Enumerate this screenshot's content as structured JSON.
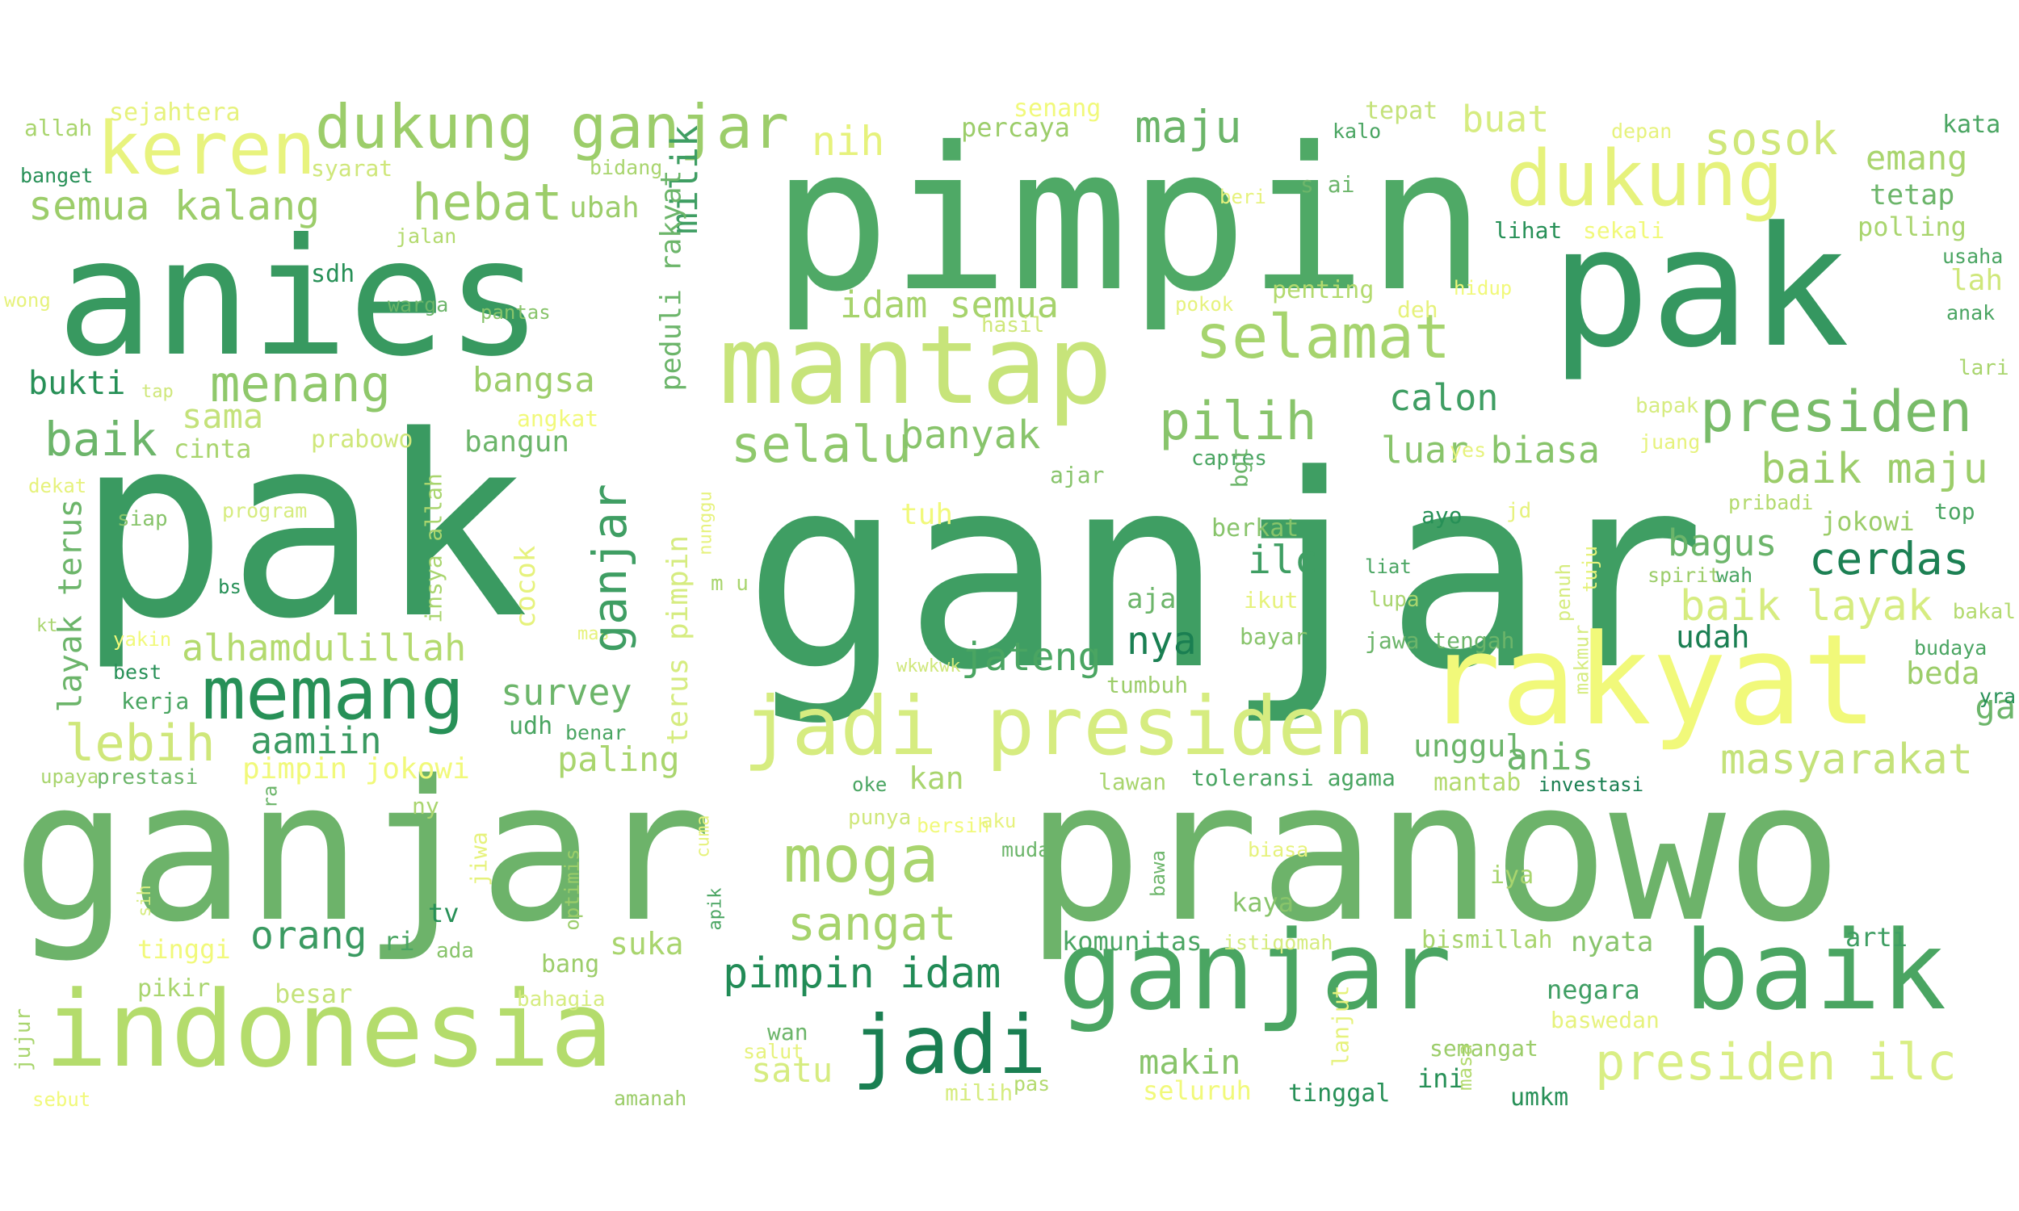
{
  "words": [
    {
      "text": "ganjar",
      "color": "#3f9e63"
    },
    {
      "text": "pak",
      "color": "#3a9a61"
    },
    {
      "text": "pimpin",
      "color": "#4fa966"
    },
    {
      "text": "pranowo",
      "color": "#6db36a"
    },
    {
      "text": "ganjar",
      "color": "#6db36a"
    },
    {
      "text": "anies",
      "color": "#389960"
    },
    {
      "text": "pak",
      "color": "#359760"
    },
    {
      "text": "indonesia",
      "color": "#b4dc6c"
    },
    {
      "text": "rakyat",
      "color": "#f1f97a"
    },
    {
      "text": "mantap",
      "color": "#c7e47a"
    },
    {
      "text": "ganjar",
      "color": "#4aa562"
    },
    {
      "text": "baik",
      "color": "#4aa562"
    },
    {
      "text": "jadi presiden",
      "color": "#d6ec80"
    },
    {
      "text": "dukung",
      "color": "#e6f27c"
    },
    {
      "text": "keren",
      "color": "#e8f37e"
    },
    {
      "text": "dukung ganjar",
      "color": "#9ccd6a"
    },
    {
      "text": "selamat",
      "color": "#a6d46e"
    },
    {
      "text": "memang",
      "color": "#279057"
    },
    {
      "text": "jadi",
      "color": "#1a7f52"
    },
    {
      "text": "presiden",
      "color": "#78bb68"
    },
    {
      "text": "moga",
      "color": "#a9d56e"
    },
    {
      "text": "presiden ilc",
      "color": "#d9ee84"
    },
    {
      "text": "pilih",
      "color": "#88c46b"
    },
    {
      "text": "selalu",
      "color": "#8fc86c"
    },
    {
      "text": "hebat",
      "color": "#9ccd6a"
    },
    {
      "text": "maju",
      "color": "#6cb56a"
    },
    {
      "text": "menang",
      "color": "#8fc86b"
    },
    {
      "text": "lebih",
      "color": "#cfe77a"
    },
    {
      "text": "sosok",
      "color": "#cfe77a"
    },
    {
      "text": "semua kalang",
      "color": "#9ccd6a"
    },
    {
      "text": "sangat",
      "color": "#a6d36c"
    },
    {
      "text": "cerdas",
      "color": "#1c8053"
    },
    {
      "text": "masyarakat",
      "color": "#c4e27a"
    },
    {
      "text": "baik maju",
      "color": "#9ccd6a"
    },
    {
      "text": "baik layak",
      "color": "#d6ec80"
    },
    {
      "text": "pimpin idam",
      "color": "#218b56"
    },
    {
      "text": "baik",
      "color": "#6cb56a"
    },
    {
      "text": "luar biasa",
      "color": "#88c46b"
    },
    {
      "text": "alhamdulillah",
      "color": "#b3da6e"
    },
    {
      "text": "idam semua",
      "color": "#a6d36c"
    },
    {
      "text": "banyak",
      "color": "#88c46b"
    },
    {
      "text": "calon",
      "color": "#3f9e63"
    },
    {
      "text": "bagus",
      "color": "#6cb56a"
    },
    {
      "text": "nih",
      "color": "#e6f27c"
    },
    {
      "text": "aamiin",
      "color": "#3a9a61"
    },
    {
      "text": "bangsa",
      "color": "#9ccd6a"
    },
    {
      "text": "survey",
      "color": "#6cb56a"
    },
    {
      "text": "orang",
      "color": "#3a9a61"
    },
    {
      "text": "makin",
      "color": "#88c46b"
    },
    {
      "text": "nya",
      "color": "#1a7f52"
    },
    {
      "text": "jateng",
      "color": "#4aa562"
    },
    {
      "text": "ilc",
      "color": "#3f9e63"
    },
    {
      "text": "anis",
      "color": "#6cb56a"
    },
    {
      "text": "paling",
      "color": "#a9d56e"
    },
    {
      "text": "emang",
      "color": "#a9d56e"
    },
    {
      "text": "satu",
      "color": "#d6ec80"
    },
    {
      "text": "sama",
      "color": "#c4e27a"
    },
    {
      "text": "buat",
      "color": "#d6ec80"
    },
    {
      "text": "bukti",
      "color": "#279057"
    },
    {
      "text": "suka",
      "color": "#a9d56e"
    },
    {
      "text": "kan",
      "color": "#a9d56e"
    },
    {
      "text": "unggul",
      "color": "#6cb56a"
    },
    {
      "text": "pimpin jokowi",
      "color": "#f1f97a"
    },
    {
      "text": "udah",
      "color": "#1a7f52"
    },
    {
      "text": "tetap",
      "color": "#6cb56a"
    },
    {
      "text": "ga",
      "color": "#6cb56a"
    },
    {
      "text": "beda",
      "color": "#9ccd6a"
    },
    {
      "text": "lah",
      "color": "#cfe77a"
    },
    {
      "text": "jokowi",
      "color": "#9ccd6a"
    },
    {
      "text": "bangun",
      "color": "#6cb56a"
    },
    {
      "text": "prabowo",
      "color": "#cfe77a"
    },
    {
      "text": "cinta",
      "color": "#a9d56e"
    },
    {
      "text": "kaya",
      "color": "#88c46b"
    },
    {
      "text": "komunitas",
      "color": "#4aa562"
    },
    {
      "text": "nyata",
      "color": "#88c46b"
    },
    {
      "text": "arti",
      "color": "#3f9e63"
    },
    {
      "text": "negara",
      "color": "#3f9e63"
    },
    {
      "text": "tv",
      "color": "#279057"
    },
    {
      "text": "aja",
      "color": "#6cb56a"
    },
    {
      "text": "polling",
      "color": "#a9d56e"
    },
    {
      "text": "percaya",
      "color": "#9ccd6a"
    },
    {
      "text": "tepat",
      "color": "#c4e27a"
    },
    {
      "text": "senang",
      "color": "#f1f97a"
    },
    {
      "text": "sejahtera",
      "color": "#e6f27c"
    },
    {
      "text": "allah",
      "color": "#a9d56e"
    },
    {
      "text": "banget",
      "color": "#279057"
    },
    {
      "text": "syarat",
      "color": "#cfe77a"
    },
    {
      "text": "bidang",
      "color": "#a9d56e"
    },
    {
      "text": "ubah",
      "color": "#9ccd6a"
    },
    {
      "text": "jalan",
      "color": "#b3da6e"
    },
    {
      "text": "sdh",
      "color": "#279057"
    },
    {
      "text": "warga",
      "color": "#6cb56a"
    },
    {
      "text": "pantas",
      "color": "#88c46b"
    },
    {
      "text": "wong",
      "color": "#e6f27c"
    },
    {
      "text": "tap",
      "color": "#cfe77a"
    },
    {
      "text": "angkat",
      "color": "#f1f97a"
    },
    {
      "text": "dekat",
      "color": "#e6f27c"
    },
    {
      "text": "siap",
      "color": "#88c46b"
    },
    {
      "text": "program",
      "color": "#d6ec80"
    },
    {
      "text": "bs",
      "color": "#279057"
    },
    {
      "text": "kt",
      "color": "#a9d56e"
    },
    {
      "text": "yakin",
      "color": "#f1f97a"
    },
    {
      "text": "mas",
      "color": "#e6f27c"
    },
    {
      "text": "best",
      "color": "#279057"
    },
    {
      "text": "kerja",
      "color": "#4aa562"
    },
    {
      "text": "udh",
      "color": "#4aa562"
    },
    {
      "text": "benar",
      "color": "#4aa562"
    },
    {
      "text": "upaya",
      "color": "#a9d56e"
    },
    {
      "text": "prestasi",
      "color": "#6cb56a"
    },
    {
      "text": "ny",
      "color": "#a9d56e"
    },
    {
      "text": "tinggi",
      "color": "#f1f97a"
    },
    {
      "text": "ri",
      "color": "#4aa562"
    },
    {
      "text": "ada",
      "color": "#88c46b"
    },
    {
      "text": "bang",
      "color": "#9ccd6a"
    },
    {
      "text": "pikir",
      "color": "#a9d56e"
    },
    {
      "text": "besar",
      "color": "#c4e27a"
    },
    {
      "text": "bahagia",
      "color": "#d6ec80"
    },
    {
      "text": "sebut",
      "color": "#f1f97a"
    },
    {
      "text": "amanah",
      "color": "#9ccd6a"
    },
    {
      "text": "wan",
      "color": "#6cb56a"
    },
    {
      "text": "salut",
      "color": "#e6f27c"
    },
    {
      "text": "milih",
      "color": "#d6ec80"
    },
    {
      "text": "pas",
      "color": "#b3da6e"
    },
    {
      "text": "seluruh",
      "color": "#f1f97a"
    },
    {
      "text": "tinggal",
      "color": "#279057"
    },
    {
      "text": "ini",
      "color": "#279057"
    },
    {
      "text": "umkm",
      "color": "#279057"
    },
    {
      "text": "semangat",
      "color": "#9ccd6a"
    },
    {
      "text": "baswedan",
      "color": "#e6f27c"
    },
    {
      "text": "bismillah",
      "color": "#a9d56e"
    },
    {
      "text": "istiqomah",
      "color": "#d6ec80"
    },
    {
      "text": "iya",
      "color": "#a9d56e"
    },
    {
      "text": "muda",
      "color": "#6cb56a"
    },
    {
      "text": "biasa",
      "color": "#e6f27c"
    },
    {
      "text": "oke",
      "color": "#4aa562"
    },
    {
      "text": "punya",
      "color": "#cfe77a"
    },
    {
      "text": "bersih",
      "color": "#f1f97a"
    },
    {
      "text": "aku",
      "color": "#e6f27c"
    },
    {
      "text": "lawan",
      "color": "#a9d56e"
    },
    {
      "text": "toleransi agama",
      "color": "#4aa562"
    },
    {
      "text": "mantab",
      "color": "#b3da6e"
    },
    {
      "text": "investasi",
      "color": "#1a7f52"
    },
    {
      "text": "tumbuh",
      "color": "#9ccd6a"
    },
    {
      "text": "wkwkwk",
      "color": "#cfe77a"
    },
    {
      "text": "jawa tengah",
      "color": "#6cb56a"
    },
    {
      "text": "bayar",
      "color": "#88c46b"
    },
    {
      "text": "ikut",
      "color": "#e6f27c"
    },
    {
      "text": "lupa",
      "color": "#a9d56e"
    },
    {
      "text": "berkat",
      "color": "#88c46b"
    },
    {
      "text": "liat",
      "color": "#4aa562"
    },
    {
      "text": "ayo",
      "color": "#279057"
    },
    {
      "text": "jd",
      "color": "#e6f27c"
    },
    {
      "text": "tuh",
      "color": "#f1f97a"
    },
    {
      "text": "ajar",
      "color": "#88c46b"
    },
    {
      "text": "m u",
      "color": "#a9d56e"
    },
    {
      "text": "capres",
      "color": "#4aa562"
    },
    {
      "text": "yes",
      "color": "#e6f27c"
    },
    {
      "text": "juang",
      "color": "#e6f27c"
    },
    {
      "text": "bapak",
      "color": "#d6ec80"
    },
    {
      "text": "pribadi",
      "color": "#b3da6e"
    },
    {
      "text": "top",
      "color": "#4aa562"
    },
    {
      "text": "spirit",
      "color": "#9ccd6a"
    },
    {
      "text": "wah",
      "color": "#4aa562"
    },
    {
      "text": "bakal",
      "color": "#b3da6e"
    },
    {
      "text": "budaya",
      "color": "#4aa562"
    },
    {
      "text": "yra",
      "color": "#279057"
    },
    {
      "text": "lari",
      "color": "#a9d56e"
    },
    {
      "text": "anak",
      "color": "#4aa562"
    },
    {
      "text": "usaha",
      "color": "#4aa562"
    },
    {
      "text": "kata",
      "color": "#4aa562"
    },
    {
      "text": "depan",
      "color": "#e6f27c"
    },
    {
      "text": "sekali",
      "color": "#f1f97a"
    },
    {
      "text": "lihat",
      "color": "#279057"
    },
    {
      "text": "hidup",
      "color": "#f1f97a"
    },
    {
      "text": "deh",
      "color": "#e6f27c"
    },
    {
      "text": "penting",
      "color": "#b3da6e"
    },
    {
      "text": "hasil",
      "color": "#cfe77a"
    },
    {
      "text": "pokok",
      "color": "#e6f27c"
    },
    {
      "text": "kalo",
      "color": "#4aa562"
    },
    {
      "text": "beri",
      "color": "#e6f27c"
    },
    {
      "text": "s ai",
      "color": "#6cb56a"
    },
    {
      "text": "milik",
      "color": "#3f9e63"
    },
    {
      "text": "peduli rakyat",
      "color": "#6cb56a"
    },
    {
      "text": "terus pimpin",
      "color": "#d6ec80"
    },
    {
      "text": "ganjar",
      "color": "#3f9e63"
    },
    {
      "text": "cocok",
      "color": "#e6f27c"
    },
    {
      "text": "nunggu",
      "color": "#e6f27c"
    },
    {
      "text": "layak terus",
      "color": "#6cb56a"
    },
    {
      "text": "insya allah",
      "color": "#a9d56e"
    },
    {
      "text": "bgt",
      "color": "#6cb56a"
    },
    {
      "text": "makmur",
      "color": "#d6ec80"
    },
    {
      "text": "penuh",
      "color": "#d6ec80"
    },
    {
      "text": "tuju",
      "color": "#e6f27c"
    },
    {
      "text": "lanjut",
      "color": "#e6f27c"
    },
    {
      "text": "masa",
      "color": "#b3da6e"
    },
    {
      "text": "bawa",
      "color": "#6cb56a"
    },
    {
      "text": "cuma",
      "color": "#e6f27c"
    },
    {
      "text": "apik",
      "color": "#4aa562"
    },
    {
      "text": "optimis",
      "color": "#9ccd6a"
    },
    {
      "text": "jiwa",
      "color": "#e6f27c"
    },
    {
      "text": "sih",
      "color": "#d6ec80"
    },
    {
      "text": "jujur",
      "color": "#a9d56e"
    },
    {
      "text": "ra",
      "color": "#6cb56a"
    }
  ]
}
